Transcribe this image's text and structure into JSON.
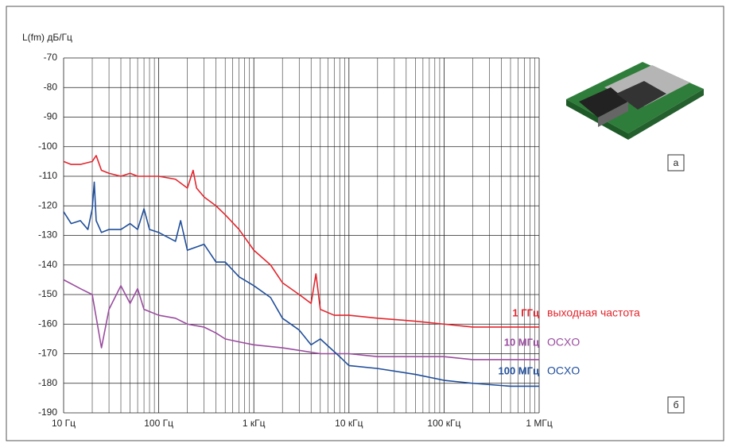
{
  "chart_data": {
    "type": "line",
    "y_label": "L(fm) дБ/Гц",
    "log_x": true,
    "grid": true,
    "xlim": [
      10,
      1000000
    ],
    "xticks": [
      {
        "value": 10,
        "label": "10 Гц"
      },
      {
        "value": 100,
        "label": "100 Гц"
      },
      {
        "value": 1000,
        "label": "1 кГц"
      },
      {
        "value": 10000,
        "label": "10 кГц"
      },
      {
        "value": 100000,
        "label": "100 кГц"
      },
      {
        "value": 1000000,
        "label": "1 МГц"
      }
    ],
    "ylim": [
      -190,
      -70
    ],
    "yticks": [
      -190,
      -180,
      -170,
      -160,
      -150,
      -140,
      -130,
      -120,
      -110,
      -100,
      -90,
      -80,
      -70
    ],
    "series": [
      {
        "name": "1 ГГц",
        "description": "выходная частота",
        "color": "#e3262d",
        "x": [
          10,
          12,
          15,
          20,
          22,
          25,
          30,
          40,
          50,
          60,
          100,
          150,
          200,
          230,
          250,
          300,
          400,
          500,
          700,
          1000,
          1500,
          2000,
          3000,
          4000,
          4500,
          5000,
          7000,
          10000,
          20000,
          50000,
          100000,
          200000,
          500000,
          1000000
        ],
        "values": [
          -105,
          -106,
          -106,
          -105,
          -103,
          -108,
          -109,
          -110,
          -109,
          -110,
          -110,
          -111,
          -114,
          -108,
          -114,
          -117,
          -120,
          -123,
          -128,
          -135,
          -140,
          -146,
          -150,
          -153,
          -143,
          -155,
          -157,
          -157,
          -158,
          -159,
          -160,
          -161,
          -161,
          -161
        ]
      },
      {
        "name": "10 МГц",
        "description": "OCXO",
        "color": "#9a4c9f",
        "x": [
          10,
          15,
          20,
          25,
          30,
          40,
          50,
          60,
          70,
          100,
          150,
          200,
          300,
          400,
          500,
          700,
          1000,
          2000,
          5000,
          10000,
          20000,
          50000,
          100000,
          200000,
          500000,
          1000000
        ],
        "values": [
          -145,
          -148,
          -150,
          -168,
          -155,
          -147,
          -153,
          -148,
          -155,
          -157,
          -158,
          -160,
          -161,
          -163,
          -165,
          -166,
          -167,
          -168,
          -170,
          -170,
          -171,
          -171,
          -171,
          -172,
          -172,
          -172
        ]
      },
      {
        "name": "100 МГц",
        "description": "OCXO",
        "color": "#1f4e9b",
        "x": [
          10,
          12,
          15,
          18,
          20,
          21,
          22,
          25,
          30,
          40,
          50,
          60,
          70,
          80,
          100,
          150,
          170,
          200,
          300,
          400,
          500,
          700,
          1000,
          1500,
          2000,
          3000,
          4000,
          5000,
          8000,
          10000,
          20000,
          50000,
          100000,
          200000,
          500000,
          1000000
        ],
        "values": [
          -122,
          -126,
          -125,
          -128,
          -121,
          -112,
          -125,
          -129,
          -128,
          -128,
          -126,
          -128,
          -121,
          -128,
          -129,
          -132,
          -125,
          -135,
          -133,
          -139,
          -139,
          -144,
          -147,
          -151,
          -158,
          -162,
          -167,
          -165,
          -171,
          -174,
          -175,
          -177,
          -179,
          -180,
          -181,
          -181
        ]
      }
    ],
    "annotations": [
      "а",
      "б"
    ]
  }
}
